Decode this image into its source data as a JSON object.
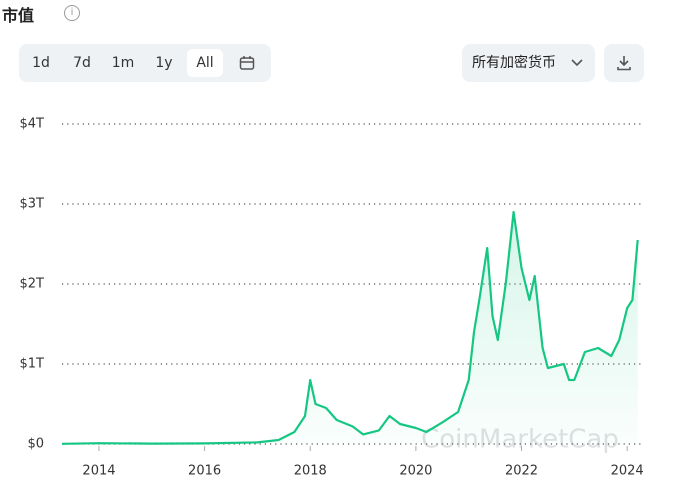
{
  "header": {
    "title": "市值"
  },
  "range_buttons": [
    "1d",
    "7d",
    "1m",
    "1y",
    "All"
  ],
  "active_button": 4,
  "filter": "所有加密货币",
  "watermark": "CoinMarketCap",
  "chart_data": {
    "type": "line",
    "x": [
      2013.3,
      2014,
      2015,
      2016,
      2017,
      2017.4,
      2017.7,
      2017.9,
      2018.0,
      2018.1,
      2018.3,
      2018.5,
      2018.8,
      2019.0,
      2019.3,
      2019.5,
      2019.7,
      2020.0,
      2020.2,
      2020.5,
      2020.8,
      2021.0,
      2021.1,
      2021.2,
      2021.35,
      2021.45,
      2021.55,
      2021.7,
      2021.85,
      2022.0,
      2022.15,
      2022.25,
      2022.4,
      2022.5,
      2022.8,
      2022.9,
      2023.0,
      2023.2,
      2023.45,
      2023.7,
      2023.85,
      2024.0,
      2024.1,
      2024.2
    ],
    "series": [
      {
        "color": "#16c784",
        "values": [
          0.002,
          0.01,
          0.005,
          0.007,
          0.02,
          0.05,
          0.15,
          0.35,
          0.8,
          0.5,
          0.45,
          0.3,
          0.22,
          0.12,
          0.17,
          0.35,
          0.25,
          0.2,
          0.15,
          0.27,
          0.4,
          0.8,
          1.4,
          1.8,
          2.45,
          1.6,
          1.3,
          2.0,
          2.9,
          2.2,
          1.8,
          2.1,
          1.2,
          0.95,
          1.0,
          0.8,
          0.8,
          1.15,
          1.2,
          1.1,
          1.3,
          1.7,
          1.8,
          2.55
        ]
      }
    ],
    "xlim": [
      2013.3,
      2024.3
    ],
    "xticks": [
      2014,
      2016,
      2018,
      2020,
      2022,
      2024
    ],
    "ylim": [
      0,
      4
    ],
    "yticks": [
      {
        "value": 0,
        "label": "$0"
      },
      {
        "value": 1,
        "label": "$1T"
      },
      {
        "value": 2,
        "label": "$2T"
      },
      {
        "value": 3,
        "label": "$3T"
      },
      {
        "value": 4,
        "label": "$4T"
      }
    ],
    "grid": true
  }
}
